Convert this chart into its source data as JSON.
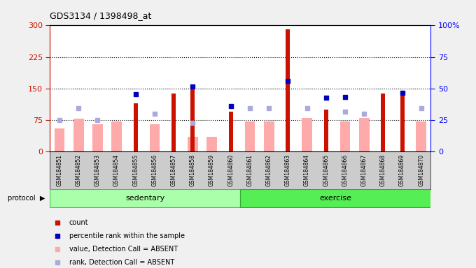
{
  "title": "GDS3134 / 1398498_at",
  "samples": [
    "GSM184851",
    "GSM184852",
    "GSM184853",
    "GSM184854",
    "GSM184855",
    "GSM184856",
    "GSM184857",
    "GSM184858",
    "GSM184859",
    "GSM184860",
    "GSM184861",
    "GSM184862",
    "GSM184863",
    "GSM184864",
    "GSM184865",
    "GSM184866",
    "GSM184867",
    "GSM184868",
    "GSM184869",
    "GSM184870"
  ],
  "groups": [
    "sedentary",
    "sedentary",
    "sedentary",
    "sedentary",
    "sedentary",
    "sedentary",
    "sedentary",
    "sedentary",
    "sedentary",
    "sedentary",
    "exercise",
    "exercise",
    "exercise",
    "exercise",
    "exercise",
    "exercise",
    "exercise",
    "exercise",
    "exercise",
    "exercise"
  ],
  "count_bars": [
    null,
    null,
    null,
    null,
    115,
    null,
    138,
    158,
    null,
    95,
    null,
    null,
    290,
    null,
    100,
    null,
    null,
    138,
    140,
    null
  ],
  "pink_bars": [
    55,
    78,
    65,
    72,
    null,
    65,
    null,
    35,
    35,
    null,
    72,
    72,
    null,
    80,
    null,
    72,
    80,
    null,
    null,
    72
  ],
  "dark_blue_dots": [
    null,
    null,
    null,
    null,
    137,
    null,
    null,
    155,
    null,
    108,
    null,
    null,
    168,
    null,
    128,
    130,
    null,
    null,
    140,
    null
  ],
  "light_blue_dots": [
    75,
    103,
    75,
    null,
    null,
    90,
    null,
    68,
    null,
    null,
    103,
    103,
    null,
    103,
    null,
    95,
    90,
    null,
    null,
    103
  ],
  "ylim_left": [
    0,
    300
  ],
  "ylim_right": [
    0,
    100
  ],
  "yticks_left": [
    0,
    75,
    150,
    225,
    300
  ],
  "yticks_right": [
    0,
    25,
    50,
    75,
    100
  ],
  "hlines": [
    75,
    150,
    225
  ],
  "bar_color_red": "#cc1100",
  "bar_color_pink": "#ffaaaa",
  "dot_color_blue_dark": "#0000bb",
  "dot_color_blue_light": "#aaaadd",
  "sed_color": "#aaffaa",
  "ex_color": "#55ee55",
  "xlabel_bg": "#cccccc",
  "plot_bg": "#ffffff",
  "fig_bg": "#f0f0f0",
  "legend_items": [
    "count",
    "percentile rank within the sample",
    "value, Detection Call = ABSENT",
    "rank, Detection Call = ABSENT"
  ],
  "legend_colors": [
    "#cc1100",
    "#0000bb",
    "#ffaaaa",
    "#aaaadd"
  ],
  "fig_width": 6.8,
  "fig_height": 3.84
}
